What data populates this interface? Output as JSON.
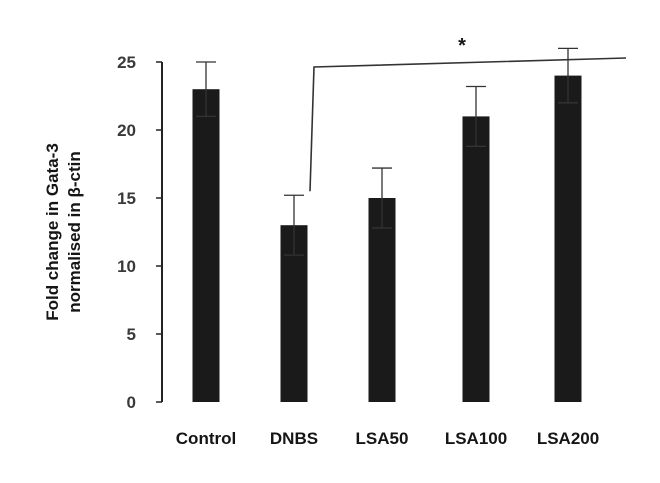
{
  "chart_data": {
    "type": "bar",
    "categories": [
      "Control",
      "DNBS",
      "LSA50",
      "LSA100",
      "LSA200"
    ],
    "values": [
      23,
      13,
      15,
      21,
      24
    ],
    "errors": [
      2,
      2.2,
      2.2,
      2.2,
      2.0
    ],
    "ylabel": [
      "Fold change in Gata-3",
      "normalised in β-ctin"
    ],
    "ylim": [
      0,
      25
    ],
    "yticks": [
      0,
      5,
      10,
      15,
      20,
      25
    ],
    "grid": false,
    "bar_color": "#1a1a1a",
    "annotation": {
      "text": "*",
      "from": "DNBS",
      "to": "LSA200"
    }
  }
}
